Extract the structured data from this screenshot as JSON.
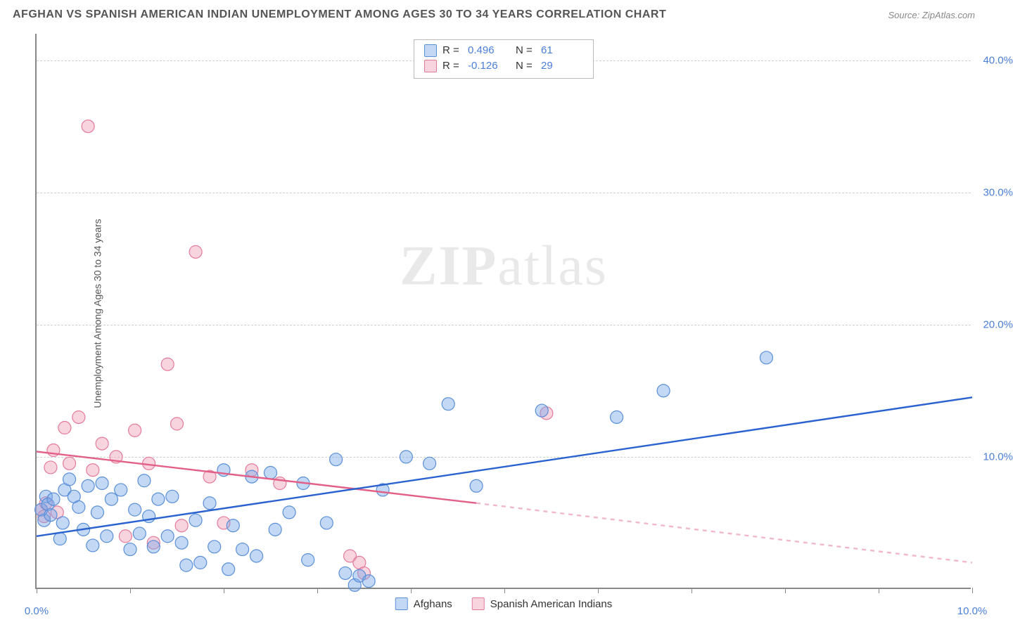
{
  "title": "AFGHAN VS SPANISH AMERICAN INDIAN UNEMPLOYMENT AMONG AGES 30 TO 34 YEARS CORRELATION CHART",
  "source": "Source: ZipAtlas.com",
  "ylabel": "Unemployment Among Ages 30 to 34 years",
  "watermark_a": "ZIP",
  "watermark_b": "atlas",
  "chart": {
    "type": "scatter",
    "background_color": "#ffffff",
    "grid_color": "#d0d0d0",
    "axis_color": "#888888",
    "tick_label_color": "#4a7fd8",
    "xlim": [
      0,
      10
    ],
    "ylim": [
      0,
      42
    ],
    "xticks": [
      0,
      1,
      2,
      3,
      4,
      5,
      6,
      7,
      8,
      9,
      10
    ],
    "xtick_labels": {
      "0": "0.0%",
      "10": "10.0%"
    },
    "yticks": [
      10,
      20,
      30,
      40
    ],
    "ytick_labels": {
      "10": "10.0%",
      "20": "20.0%",
      "30": "30.0%",
      "40": "40.0%"
    },
    "marker_radius": 9,
    "marker_stroke_width": 1.2,
    "trend_line_width": 2.4
  },
  "series": {
    "afghans": {
      "label": "Afghans",
      "color_fill": "rgba(122,168,232,0.45)",
      "color_stroke": "#5a8fd8",
      "trend_color": "#2a62d0",
      "R": "0.496",
      "N": "61",
      "trend": {
        "x1": 0,
        "y1": 4.0,
        "x2": 10,
        "y2": 14.5
      },
      "points": [
        [
          0.05,
          6.0
        ],
        [
          0.08,
          5.2
        ],
        [
          0.1,
          7.0
        ],
        [
          0.12,
          6.4
        ],
        [
          0.15,
          5.6
        ],
        [
          0.18,
          6.8
        ],
        [
          0.25,
          3.8
        ],
        [
          0.28,
          5.0
        ],
        [
          0.3,
          7.5
        ],
        [
          0.35,
          8.3
        ],
        [
          0.4,
          7.0
        ],
        [
          0.45,
          6.2
        ],
        [
          0.5,
          4.5
        ],
        [
          0.55,
          7.8
        ],
        [
          0.6,
          3.3
        ],
        [
          0.65,
          5.8
        ],
        [
          0.7,
          8.0
        ],
        [
          0.75,
          4.0
        ],
        [
          0.8,
          6.8
        ],
        [
          0.9,
          7.5
        ],
        [
          1.0,
          3.0
        ],
        [
          1.05,
          6.0
        ],
        [
          1.1,
          4.2
        ],
        [
          1.15,
          8.2
        ],
        [
          1.2,
          5.5
        ],
        [
          1.25,
          3.2
        ],
        [
          1.3,
          6.8
        ],
        [
          1.4,
          4.0
        ],
        [
          1.45,
          7.0
        ],
        [
          1.55,
          3.5
        ],
        [
          1.6,
          1.8
        ],
        [
          1.7,
          5.2
        ],
        [
          1.75,
          2.0
        ],
        [
          1.85,
          6.5
        ],
        [
          1.9,
          3.2
        ],
        [
          2.0,
          9.0
        ],
        [
          2.05,
          1.5
        ],
        [
          2.1,
          4.8
        ],
        [
          2.2,
          3.0
        ],
        [
          2.3,
          8.5
        ],
        [
          2.35,
          2.5
        ],
        [
          2.5,
          8.8
        ],
        [
          2.55,
          4.5
        ],
        [
          2.7,
          5.8
        ],
        [
          2.85,
          8.0
        ],
        [
          2.9,
          2.2
        ],
        [
          3.1,
          5.0
        ],
        [
          3.2,
          9.8
        ],
        [
          3.3,
          1.2
        ],
        [
          3.4,
          0.3
        ],
        [
          3.45,
          1.0
        ],
        [
          3.7,
          7.5
        ],
        [
          3.95,
          10.0
        ],
        [
          4.2,
          9.5
        ],
        [
          4.4,
          14.0
        ],
        [
          4.7,
          7.8
        ],
        [
          5.4,
          13.5
        ],
        [
          6.2,
          13.0
        ],
        [
          6.7,
          15.0
        ],
        [
          7.8,
          17.5
        ],
        [
          3.55,
          0.6
        ]
      ]
    },
    "spanish": {
      "label": "Spanish American Indians",
      "color_fill": "rgba(240,160,185,0.45)",
      "color_stroke": "#e47a9a",
      "trend_color": "#e26088",
      "trend_dash_color": "#f0b8c8",
      "R": "-0.126",
      "N": "29",
      "trend_solid": {
        "x1": 0,
        "y1": 10.4,
        "x2": 4.7,
        "y2": 6.5
      },
      "trend_dash": {
        "x1": 4.7,
        "y1": 6.5,
        "x2": 10,
        "y2": 2.0
      },
      "points": [
        [
          0.05,
          6.0
        ],
        [
          0.08,
          5.5
        ],
        [
          0.1,
          6.5
        ],
        [
          0.15,
          9.2
        ],
        [
          0.18,
          10.5
        ],
        [
          0.22,
          5.8
        ],
        [
          0.3,
          12.2
        ],
        [
          0.35,
          9.5
        ],
        [
          0.45,
          13.0
        ],
        [
          0.55,
          35.0
        ],
        [
          0.6,
          9.0
        ],
        [
          0.7,
          11.0
        ],
        [
          0.85,
          10.0
        ],
        [
          0.95,
          4.0
        ],
        [
          1.05,
          12.0
        ],
        [
          1.2,
          9.5
        ],
        [
          1.25,
          3.5
        ],
        [
          1.4,
          17.0
        ],
        [
          1.5,
          12.5
        ],
        [
          1.55,
          4.8
        ],
        [
          1.7,
          25.5
        ],
        [
          1.85,
          8.5
        ],
        [
          2.0,
          5.0
        ],
        [
          2.3,
          9.0
        ],
        [
          2.6,
          8.0
        ],
        [
          3.35,
          2.5
        ],
        [
          3.45,
          2.0
        ],
        [
          3.5,
          1.2
        ],
        [
          5.45,
          13.3
        ]
      ]
    }
  },
  "legend_top_labels": {
    "R": "R =",
    "N": "N ="
  }
}
